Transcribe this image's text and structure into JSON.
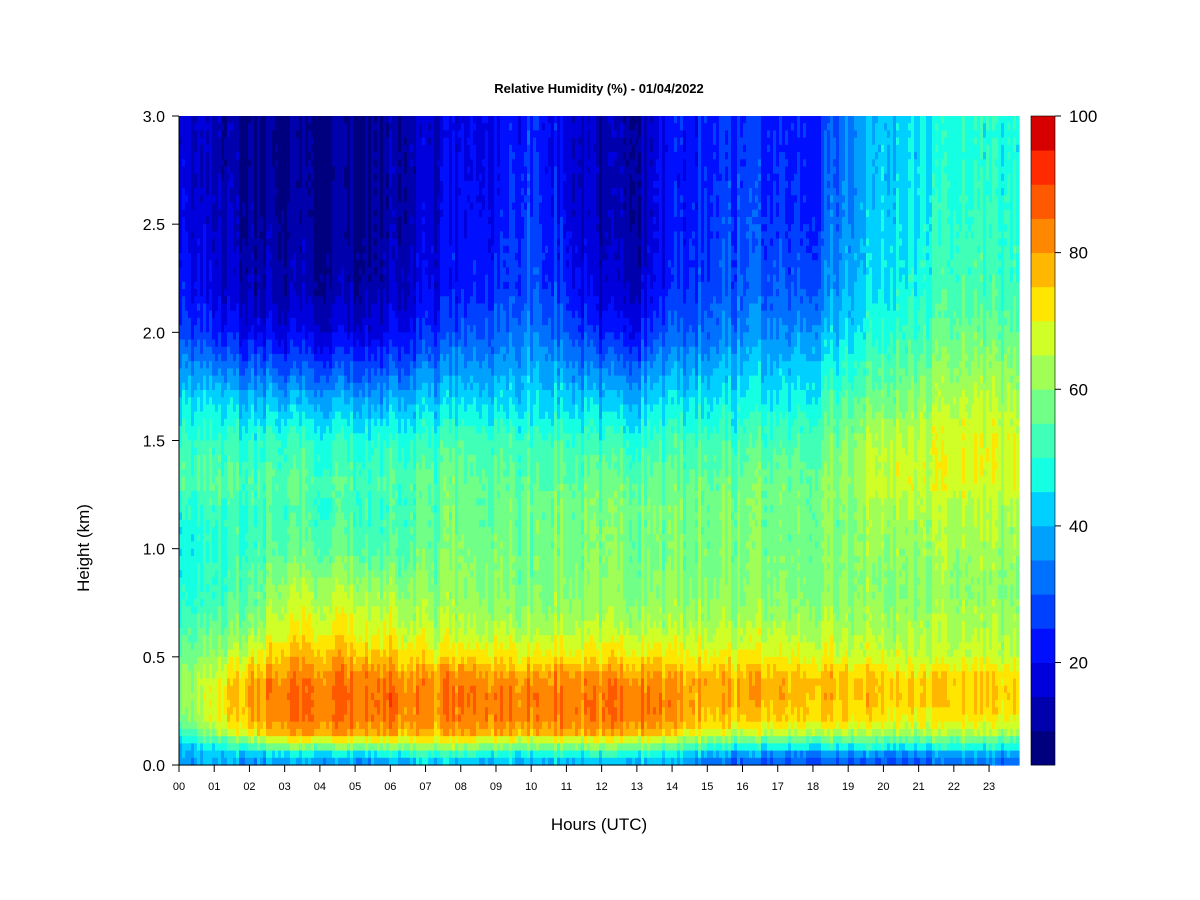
{
  "chart_data": {
    "type": "heatmap",
    "title": "Relative Humidity (%) - 01/04/2022",
    "xlabel": "Hours (UTC)",
    "ylabel": "Height (km)",
    "xlim": [
      0,
      23.85
    ],
    "ylim": [
      0,
      3.0
    ],
    "x_ticks": [
      "00",
      "01",
      "02",
      "03",
      "04",
      "05",
      "06",
      "07",
      "08",
      "09",
      "10",
      "11",
      "12",
      "13",
      "14",
      "15",
      "16",
      "17",
      "18",
      "19",
      "20",
      "21",
      "22",
      "23"
    ],
    "y_ticks": [
      "0.0",
      "0.5",
      "1.0",
      "1.5",
      "2.0",
      "2.5",
      "3.0"
    ],
    "colorbar": {
      "min": 5,
      "max": 100,
      "step": 5,
      "tick_values": [
        20,
        40,
        60,
        80,
        100
      ],
      "tick_labels": [
        "20",
        "40",
        "60",
        "80",
        "100"
      ],
      "colors": [
        "#00007f",
        "#0000ad",
        "#0000dc",
        "#0010ff",
        "#0040ff",
        "#0070ff",
        "#00a0ff",
        "#00d0ff",
        "#15ffe3",
        "#40ffb7",
        "#70ff87",
        "#a0ff57",
        "#d0ff27",
        "#ffe600",
        "#ffb700",
        "#ff8800",
        "#ff5900",
        "#ff2a00",
        "#d60000",
        "#a80000",
        "#7f0000"
      ]
    },
    "grid": false,
    "height_levels_km": [
      0.0,
      0.05,
      0.1,
      0.15,
      0.2,
      0.3,
      0.4,
      0.5,
      0.6,
      0.7,
      0.8,
      1.0,
      1.2,
      1.3,
      1.5,
      1.7,
      2.0,
      2.2,
      2.5,
      2.8,
      3.0
    ],
    "profiles": [
      {
        "hour": 0,
        "rh": [
          38,
          40,
          45,
          52,
          58,
          62,
          62,
          58,
          55,
          52,
          50,
          48,
          50,
          55,
          52,
          45,
          30,
          25,
          22,
          20,
          20
        ]
      },
      {
        "hour": 1,
        "rh": [
          38,
          40,
          48,
          60,
          66,
          68,
          66,
          60,
          56,
          52,
          50,
          48,
          50,
          54,
          50,
          42,
          22,
          16,
          14,
          12,
          12
        ]
      },
      {
        "hour": 2,
        "rh": [
          36,
          42,
          58,
          72,
          78,
          80,
          78,
          70,
          62,
          58,
          55,
          52,
          52,
          54,
          50,
          40,
          20,
          14,
          12,
          10,
          10
        ]
      },
      {
        "hour": 3,
        "rh": [
          35,
          45,
          64,
          78,
          82,
          84,
          82,
          76,
          70,
          66,
          62,
          55,
          52,
          54,
          50,
          38,
          18,
          12,
          10,
          8,
          8
        ]
      },
      {
        "hour": 4,
        "rh": [
          34,
          46,
          66,
          80,
          84,
          86,
          84,
          78,
          72,
          68,
          64,
          56,
          52,
          54,
          50,
          38,
          18,
          12,
          10,
          9,
          9
        ]
      },
      {
        "hour": 5,
        "rh": [
          34,
          46,
          66,
          80,
          84,
          86,
          84,
          78,
          72,
          68,
          64,
          56,
          52,
          54,
          50,
          38,
          18,
          12,
          10,
          10,
          10
        ]
      },
      {
        "hour": 6,
        "rh": [
          36,
          48,
          66,
          80,
          85,
          86,
          84,
          76,
          70,
          66,
          62,
          54,
          52,
          54,
          50,
          38,
          20,
          14,
          12,
          12,
          12
        ]
      },
      {
        "hour": 7,
        "rh": [
          38,
          50,
          66,
          76,
          80,
          82,
          80,
          72,
          66,
          62,
          60,
          56,
          54,
          55,
          50,
          40,
          24,
          18,
          16,
          15,
          15
        ]
      },
      {
        "hour": 8,
        "rh": [
          38,
          50,
          66,
          78,
          82,
          84,
          82,
          72,
          66,
          62,
          60,
          58,
          56,
          56,
          52,
          42,
          28,
          22,
          20,
          18,
          18
        ]
      },
      {
        "hour": 9,
        "rh": [
          38,
          48,
          64,
          78,
          83,
          84,
          82,
          72,
          66,
          62,
          60,
          58,
          56,
          56,
          52,
          42,
          30,
          25,
          22,
          20,
          20
        ]
      },
      {
        "hour": 10,
        "rh": [
          38,
          48,
          64,
          78,
          83,
          84,
          82,
          72,
          66,
          62,
          60,
          58,
          58,
          56,
          52,
          44,
          35,
          30,
          28,
          26,
          26
        ]
      },
      {
        "hour": 11,
        "rh": [
          38,
          48,
          64,
          78,
          83,
          84,
          82,
          72,
          66,
          62,
          60,
          58,
          58,
          56,
          52,
          42,
          30,
          24,
          20,
          18,
          18
        ]
      },
      {
        "hour": 12,
        "rh": [
          38,
          48,
          64,
          78,
          83,
          84,
          82,
          72,
          66,
          62,
          60,
          58,
          58,
          56,
          50,
          40,
          22,
          15,
          12,
          12,
          12
        ]
      },
      {
        "hour": 13,
        "rh": [
          38,
          48,
          64,
          78,
          83,
          84,
          82,
          72,
          66,
          62,
          60,
          58,
          58,
          56,
          50,
          40,
          22,
          15,
          12,
          12,
          12
        ]
      },
      {
        "hour": 14,
        "rh": [
          36,
          46,
          60,
          74,
          80,
          82,
          80,
          72,
          66,
          62,
          60,
          58,
          58,
          56,
          52,
          44,
          30,
          25,
          22,
          22,
          22
        ]
      },
      {
        "hour": 15,
        "rh": [
          32,
          40,
          56,
          68,
          76,
          78,
          78,
          70,
          66,
          62,
          60,
          58,
          58,
          57,
          52,
          44,
          32,
          28,
          25,
          24,
          24
        ]
      },
      {
        "hour": 16,
        "rh": [
          28,
          36,
          52,
          66,
          74,
          78,
          78,
          70,
          66,
          62,
          60,
          58,
          58,
          57,
          52,
          45,
          35,
          30,
          28,
          26,
          26
        ]
      },
      {
        "hour": 17,
        "rh": [
          28,
          36,
          52,
          66,
          74,
          78,
          78,
          70,
          66,
          62,
          60,
          58,
          58,
          58,
          53,
          46,
          35,
          30,
          26,
          24,
          24
        ]
      },
      {
        "hour": 18,
        "rh": [
          28,
          36,
          52,
          66,
          74,
          78,
          78,
          70,
          66,
          62,
          60,
          58,
          58,
          58,
          54,
          48,
          38,
          30,
          26,
          24,
          24
        ]
      },
      {
        "hour": 19,
        "rh": [
          28,
          36,
          52,
          64,
          72,
          76,
          76,
          68,
          64,
          62,
          60,
          60,
          60,
          62,
          60,
          54,
          44,
          40,
          36,
          34,
          34
        ]
      },
      {
        "hour": 20,
        "rh": [
          28,
          36,
          52,
          64,
          72,
          76,
          76,
          68,
          64,
          62,
          60,
          62,
          64,
          68,
          66,
          58,
          50,
          46,
          44,
          42,
          42
        ]
      },
      {
        "hour": 21,
        "rh": [
          28,
          36,
          52,
          64,
          70,
          74,
          74,
          66,
          64,
          62,
          60,
          62,
          64,
          68,
          66,
          60,
          52,
          48,
          46,
          44,
          44
        ]
      },
      {
        "hour": 22,
        "rh": [
          30,
          38,
          52,
          64,
          70,
          74,
          74,
          66,
          64,
          62,
          60,
          62,
          64,
          68,
          68,
          64,
          56,
          52,
          50,
          48,
          48
        ]
      },
      {
        "hour": 23,
        "rh": [
          30,
          38,
          52,
          64,
          70,
          74,
          74,
          66,
          64,
          62,
          60,
          62,
          64,
          68,
          68,
          64,
          56,
          52,
          50,
          48,
          48
        ]
      }
    ]
  }
}
